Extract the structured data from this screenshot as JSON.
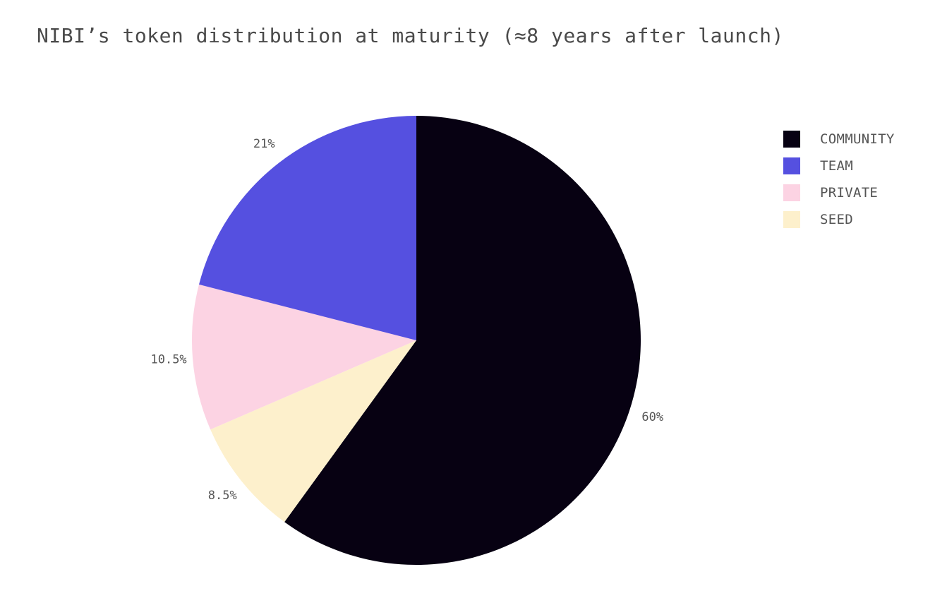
{
  "chart_data": {
    "type": "pie",
    "title": "NIBI’s token distribution at maturity (≈8 years after launch)",
    "slices": [
      {
        "name": "COMMUNITY",
        "value": 60,
        "label": "60%",
        "color": "#070112"
      },
      {
        "name": "SEED",
        "value": 8.5,
        "label": "8.5%",
        "color": "#fdf0cc"
      },
      {
        "name": "PRIVATE",
        "value": 10.5,
        "label": "10.5%",
        "color": "#fcd3e3"
      },
      {
        "name": "TEAM",
        "value": 21,
        "label": "21%",
        "color": "#5550e0"
      }
    ],
    "legend": {
      "placement": "top-right",
      "items": [
        {
          "name": "COMMUNITY",
          "color": "#070112"
        },
        {
          "name": "TEAM",
          "color": "#5550e0"
        },
        {
          "name": "PRIVATE",
          "color": "#fcd3e3"
        },
        {
          "name": "SEED",
          "color": "#fdf0cc"
        }
      ]
    },
    "start_angle": "12 o'clock",
    "direction": "clockwise"
  }
}
